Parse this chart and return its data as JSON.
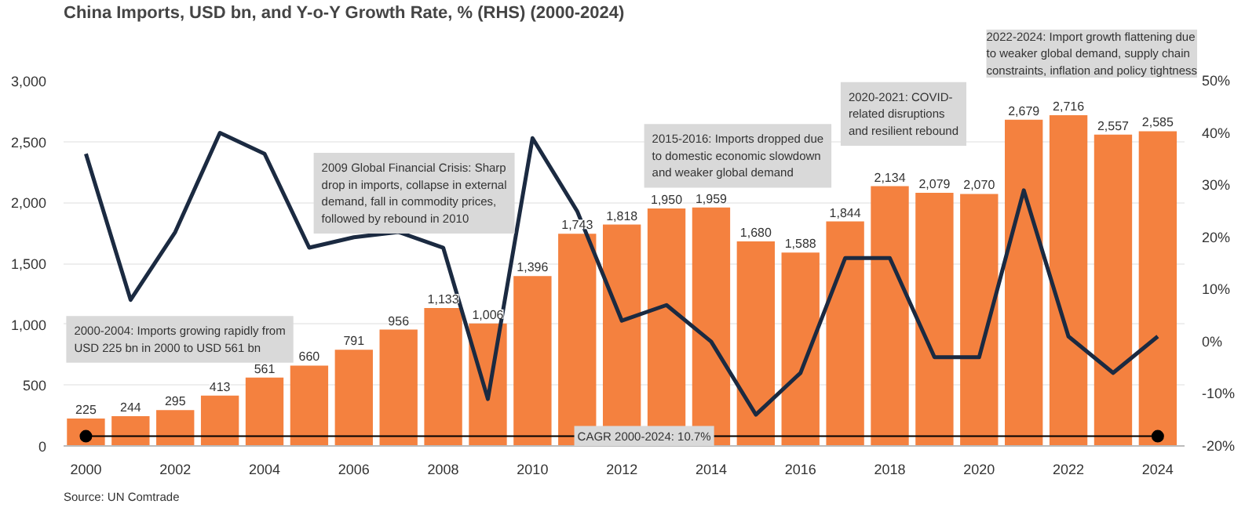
{
  "chart_data": {
    "type": "bar",
    "title": "China Imports, USD bn, and Y-o-Y Growth Rate, % (RHS) (2000-2024)",
    "x": [
      2000,
      2001,
      2002,
      2003,
      2004,
      2005,
      2006,
      2007,
      2008,
      2009,
      2010,
      2011,
      2012,
      2013,
      2014,
      2015,
      2016,
      2017,
      2018,
      2019,
      2020,
      2021,
      2022,
      2023,
      2024
    ],
    "series": [
      {
        "color": "#f4813f",
        "values": [
          225,
          244,
          295,
          413,
          561,
          660,
          791,
          956,
          1133,
          1006,
          1396,
          1743,
          1818,
          1950,
          1959,
          1680,
          1588,
          1844,
          2134,
          2079,
          2070,
          2679,
          2716,
          2557,
          2585
        ],
        "value_labels": [
          "225",
          "244",
          "295",
          "413",
          "561",
          "660",
          "791",
          "956",
          "1,133",
          "1,006",
          "1,396",
          "1,743",
          "1,818",
          "1,950",
          "1,959",
          "1,680",
          "1,588",
          "1,844",
          "2,134",
          "2,079",
          "2,070",
          "2,679",
          "2,716",
          "2,557",
          "2,585"
        ]
      },
      {
        "type": "line",
        "axis": "y2",
        "color": "#1b2a41",
        "values": [
          36,
          8,
          21,
          40,
          36,
          18,
          20,
          21,
          18,
          -11,
          39,
          25,
          4,
          7,
          0,
          -14,
          -6,
          16,
          16,
          -3,
          -3,
          29,
          1,
          -6,
          1
        ]
      },
      {
        "type": "line",
        "color": "#000000",
        "marker": "circle",
        "x": [
          2000,
          2024
        ],
        "values": [
          80,
          80
        ]
      }
    ],
    "xlim": [
      1999.5,
      2024.6
    ],
    "xticks": [
      2000,
      2002,
      2004,
      2006,
      2008,
      2010,
      2012,
      2014,
      2016,
      2018,
      2020,
      2022,
      2024
    ],
    "ylim": [
      0,
      3000
    ],
    "yticks": [
      0,
      {
        "value": 500,
        "label": "500"
      },
      {
        "value": 1000,
        "label": "1,000"
      },
      {
        "value": 1500,
        "label": "1,500"
      },
      {
        "value": 2000,
        "label": "2,000"
      },
      {
        "value": 2500,
        "label": "2,500"
      },
      {
        "value": 3000,
        "label": "3,000"
      }
    ],
    "y2lim": [
      -20,
      50
    ],
    "y2ticks": [
      {
        "value": -20,
        "label": "-20%"
      },
      {
        "value": -10,
        "label": "-10%"
      },
      {
        "value": 0,
        "label": "0%"
      },
      {
        "value": 10,
        "label": "10%"
      },
      {
        "value": 20,
        "label": "20%"
      },
      {
        "value": 30,
        "label": "30%"
      },
      {
        "value": 40,
        "label": "40%"
      },
      {
        "value": 50,
        "label": "50%"
      }
    ],
    "grid": "y",
    "annotations": [
      "2000-2004: Imports growing rapidly from\nUSD 225 bn in 2000 to USD 561 bn",
      "2009 Global Financial Crisis: Sharp\ndrop in imports, collapse in external\ndemand, fall in commodity prices,\nfollowed by rebound in 2010",
      "2015-2016: Imports dropped due\nto domestic economic slowdown\nand weaker global demand",
      "2020-2021: COVID-\nrelated disruptions\nand resilient rebound",
      "2022-2024: Import growth flattening due\nto weaker global demand, supply chain\nconstraints, inflation and policy tightness",
      {
        "text": "CAGR 2000-2024: 10.7%",
        "x": 2012.5,
        "y": 80
      },
      "Source: UN Comtrade"
    ]
  }
}
